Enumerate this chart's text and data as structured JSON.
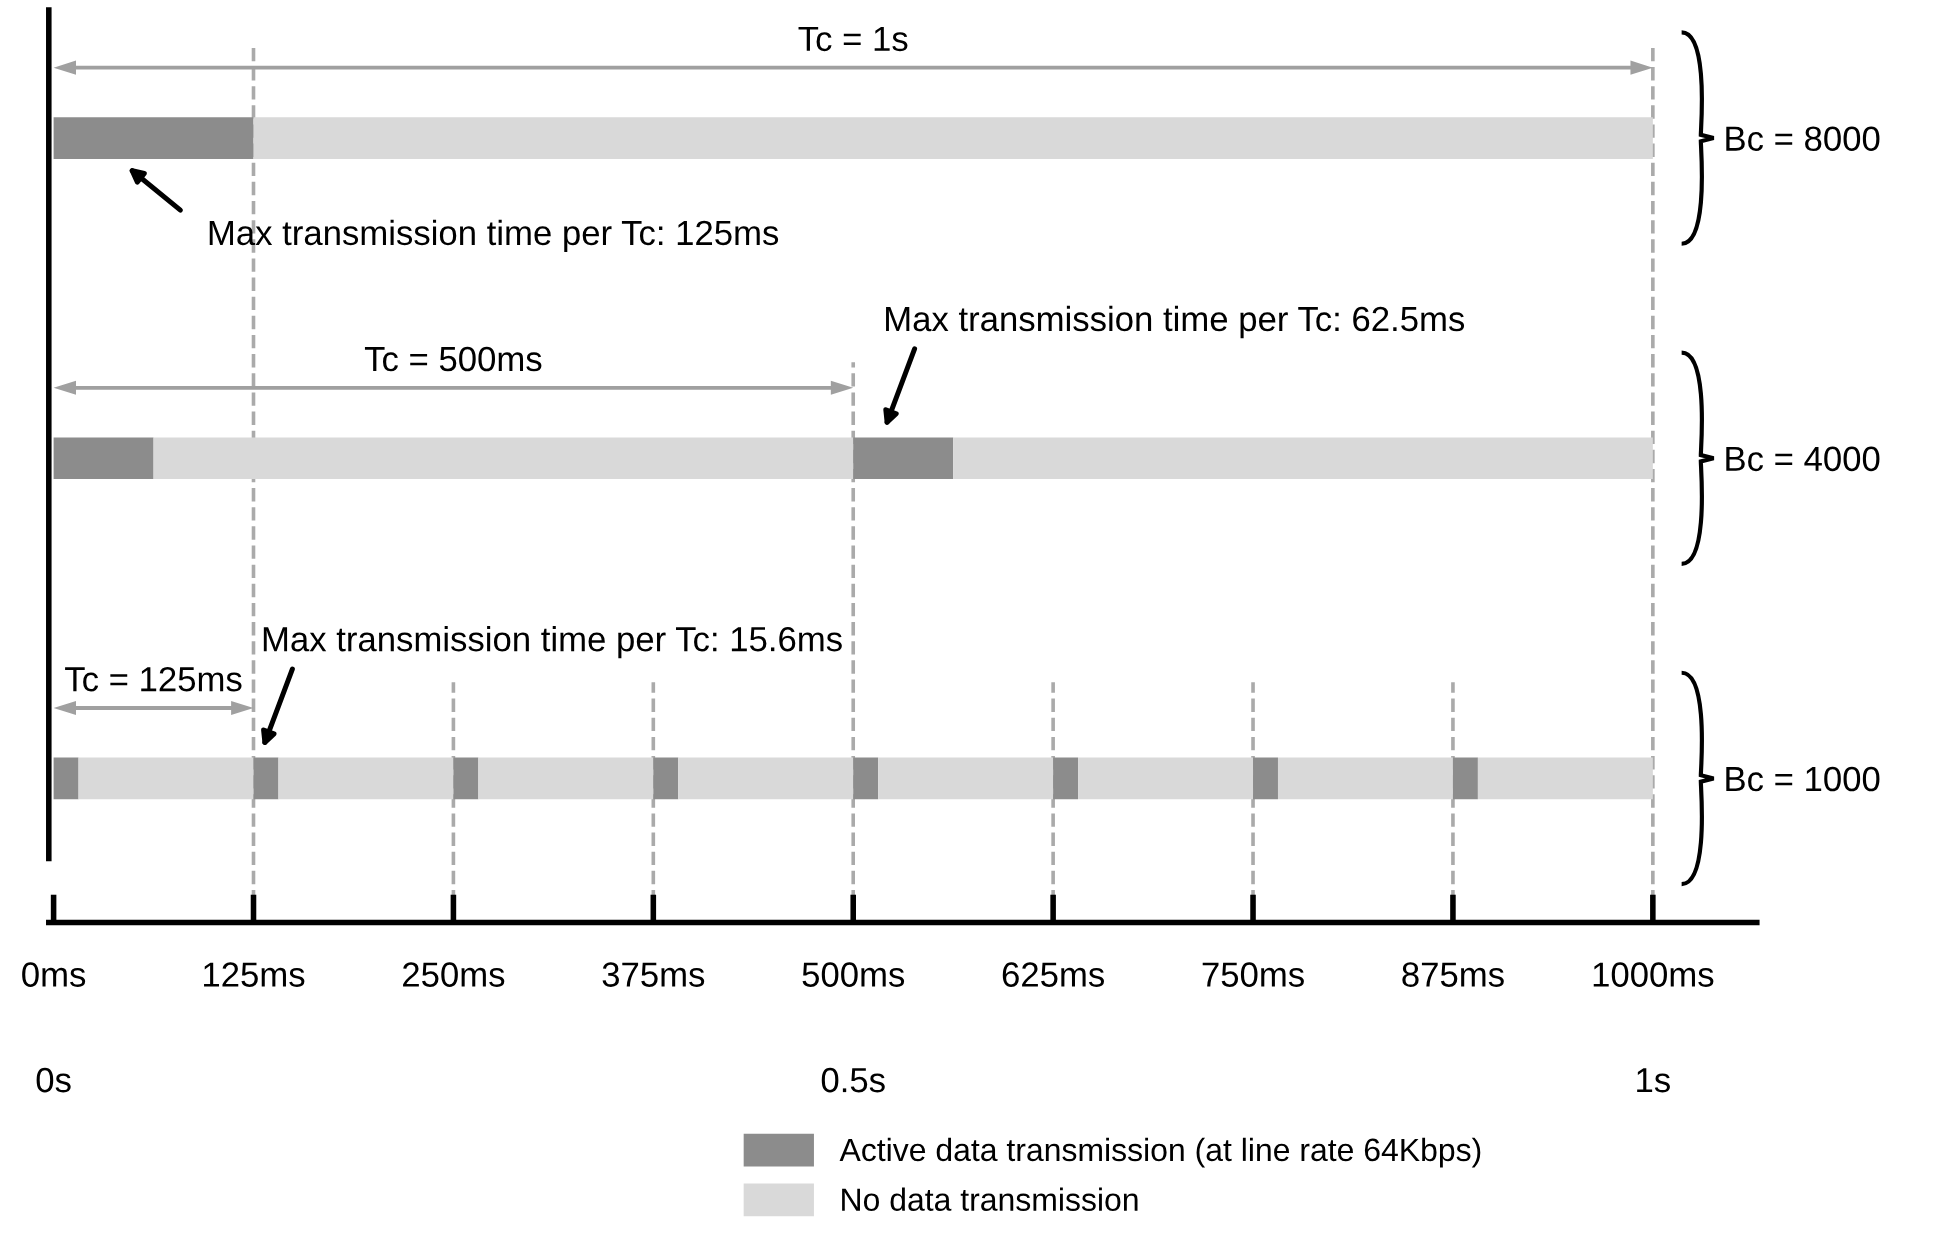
{
  "chart_data": {
    "type": "bar",
    "orientation": "horizontal",
    "stacked": true,
    "categories": [
      "Bc = 8000",
      "Bc = 4000",
      "Bc = 1000"
    ],
    "series": [
      {
        "name": "Active data transmission (at line rate 64Kbps)",
        "color": "#8c8c8c",
        "values": [
          125,
          62.5,
          15.6
        ]
      },
      {
        "name": "No data transmission",
        "color": "#d9d9d9",
        "values": [
          875,
          437.5,
          109.4
        ]
      },
      {
        "color": "#8c8c8c",
        "values": [
          null,
          62.5,
          15.6
        ]
      },
      {
        "color": "#d9d9d9",
        "values": [
          null,
          437.5,
          109.4
        ]
      },
      {
        "color": "#8c8c8c",
        "values": [
          null,
          null,
          15.6
        ]
      },
      {
        "color": "#d9d9d9",
        "values": [
          null,
          null,
          109.4
        ]
      },
      {
        "color": "#8c8c8c",
        "values": [
          null,
          null,
          15.6
        ]
      },
      {
        "color": "#d9d9d9",
        "values": [
          null,
          null,
          109.4
        ]
      },
      {
        "color": "#8c8c8c",
        "values": [
          null,
          null,
          15.6
        ]
      },
      {
        "color": "#d9d9d9",
        "values": [
          null,
          null,
          109.4
        ]
      },
      {
        "color": "#8c8c8c",
        "values": [
          null,
          null,
          15.6
        ]
      },
      {
        "color": "#d9d9d9",
        "values": [
          null,
          null,
          109.4
        ]
      },
      {
        "color": "#8c8c8c",
        "values": [
          null,
          null,
          15.6
        ]
      },
      {
        "color": "#d9d9d9",
        "values": [
          null,
          null,
          109.4
        ]
      },
      {
        "color": "#8c8c8c",
        "values": [
          null,
          null,
          15.6
        ]
      },
      {
        "color": "#d9d9d9",
        "values": [
          null,
          null,
          109.4
        ]
      }
    ],
    "xlim": [
      -3,
      1065
    ],
    "xticks": [
      {
        "value": 0,
        "label": "0ms"
      },
      {
        "value": 125,
        "label": "125ms"
      },
      {
        "value": 250,
        "label": "250ms"
      },
      {
        "value": 375,
        "label": "375ms"
      },
      {
        "value": 500,
        "label": "500ms"
      },
      {
        "value": 625,
        "label": "625ms"
      },
      {
        "value": 750,
        "label": "750ms"
      },
      {
        "value": 875,
        "label": "875ms"
      },
      {
        "value": 1000,
        "label": "1000ms"
      }
    ],
    "x2lim": [
      -0.003,
      1.065
    ],
    "x2ticks": [
      {
        "value": 0,
        "label": "0s"
      },
      {
        "value": 0.5,
        "label": "0.5s"
      },
      {
        "value": 1,
        "label": "1s"
      }
    ],
    "ref_lines": [
      {
        "axis": "x",
        "value": 125,
        "color": "#aaaaaa",
        "line_style": "dashed"
      },
      {
        "axis": "x",
        "value": 250,
        "color": "#aaaaaa",
        "line_style": "dashed"
      },
      {
        "axis": "x",
        "value": 375,
        "color": "#aaaaaa",
        "line_style": "dashed"
      },
      {
        "axis": "x",
        "value": 500,
        "color": "#aaaaaa",
        "line_style": "dashed"
      },
      {
        "axis": "x",
        "value": 625,
        "color": "#aaaaaa",
        "line_style": "dashed"
      },
      {
        "axis": "x",
        "value": 750,
        "color": "#aaaaaa",
        "line_style": "dashed"
      },
      {
        "axis": "x",
        "value": 875,
        "color": "#aaaaaa",
        "line_style": "dashed"
      },
      {
        "axis": "x",
        "value": 1000,
        "color": "#aaaaaa",
        "line_style": "dashed"
      }
    ],
    "annotations": [
      "Tc = 1s",
      "Max transmission time per Tc: 125ms",
      "Tc = 500ms",
      "Max transmission time per Tc: 62.5ms",
      "Tc = 125ms",
      "Max transmission time per Tc: 15.6ms"
    ],
    "legend": "bottom",
    "grid": false
  }
}
